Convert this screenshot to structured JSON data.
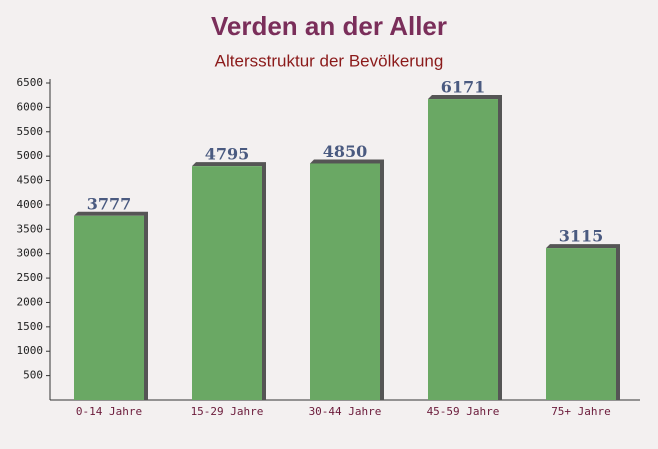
{
  "chart_data": {
    "type": "bar",
    "title": "Verden an der Aller",
    "subtitle": "Altersstruktur der Bevölkerung",
    "categories": [
      "0-14 Jahre",
      "15-29 Jahre",
      "30-44 Jahre",
      "45-59 Jahre",
      "75+ Jahre"
    ],
    "values": [
      3777,
      4795,
      4850,
      6171,
      3115
    ],
    "color": "#6aa864",
    "ylim": [
      0,
      6500
    ],
    "yticks": [
      500,
      1000,
      1500,
      2000,
      2500,
      3000,
      3500,
      4000,
      4500,
      5000,
      5500,
      6000,
      6500
    ]
  }
}
